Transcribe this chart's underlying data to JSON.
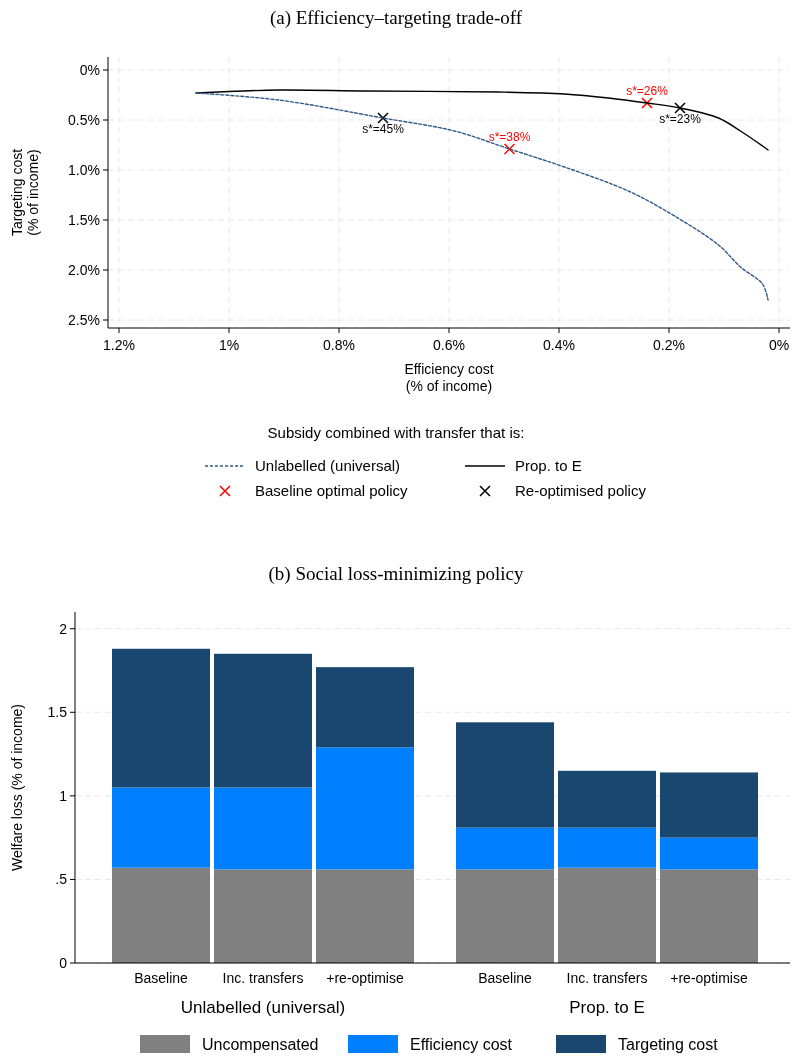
{
  "chart_data": [
    {
      "type": "line",
      "title": "(a)  Efficiency–targeting trade-off",
      "xlabel": "Efficiency cost\n(% of income)",
      "ylabel": "Targeting cost\n(% of income)",
      "legend_title": "Subsidy combined with transfer that is:",
      "legend": "bottom",
      "grid": true,
      "xlim": [
        1.22,
        -0.02
      ],
      "xticks": [
        {
          "value": 1.2,
          "label": "1.2%"
        },
        {
          "value": 1,
          "label": "1%"
        },
        {
          "value": 0.8,
          "label": "0.8%"
        },
        {
          "value": 0.6,
          "label": "0.6%"
        },
        {
          "value": 0.4,
          "label": "0.4%"
        },
        {
          "value": 0.2,
          "label": "0.2%"
        },
        {
          "value": 0,
          "label": "0%"
        }
      ],
      "ylim": [
        2.58,
        -0.13
      ],
      "yticks": [
        {
          "value": 0,
          "label": "0%"
        },
        {
          "value": 0.5,
          "label": "0.5%"
        },
        {
          "value": 1,
          "label": "1.0%"
        },
        {
          "value": 1.5,
          "label": "1.5%"
        },
        {
          "value": 2,
          "label": "2.0%"
        },
        {
          "value": 2.5,
          "label": "2.5%"
        }
      ],
      "annotations": [
        {
          "text": "s*=26%",
          "x": 0.24,
          "y": 0.33
        },
        {
          "text": "s*=38%",
          "x": 0.49,
          "y": 0.79
        },
        {
          "text": "s*=23%",
          "x": 0.18,
          "y": 0.38
        },
        {
          "text": "s*=45%",
          "x": 0.72,
          "y": 0.48
        }
      ],
      "series": [
        {
          "name": "Unlabelled (universal)",
          "type": "line",
          "line_style": "dashed",
          "color": "#2f5a87",
          "x": [
            1.06,
            0.91,
            0.72,
            0.59,
            0.49,
            0.39,
            0.27,
            0.19,
            0.11,
            0.07,
            0.03,
            0.02
          ],
          "values": [
            0.23,
            0.3,
            0.48,
            0.61,
            0.79,
            0.97,
            1.22,
            1.46,
            1.75,
            1.97,
            2.14,
            2.3
          ]
        },
        {
          "name": "Prop. to E",
          "type": "line",
          "line_style": "solid",
          "color": "#000000",
          "x": [
            1.06,
            0.91,
            0.75,
            0.51,
            0.39,
            0.31,
            0.24,
            0.18,
            0.11,
            0.07,
            0.03,
            0.02
          ],
          "values": [
            0.23,
            0.2,
            0.21,
            0.22,
            0.24,
            0.28,
            0.33,
            0.38,
            0.48,
            0.61,
            0.76,
            0.8
          ]
        },
        {
          "name": "Baseline optimal policy",
          "type": "scatter",
          "marker": "cross",
          "color": "#ff0000",
          "x": [
            0.24,
            0.49
          ],
          "values": [
            0.33,
            0.79
          ]
        },
        {
          "name": "Re-optimised policy",
          "type": "scatter",
          "marker": "cross",
          "color": "#000000",
          "x": [
            0.18,
            0.72
          ],
          "values": [
            0.38,
            0.48
          ]
        }
      ]
    },
    {
      "type": "bar",
      "stacked": true,
      "title": "(b)  Social loss-minimizing policy",
      "ylabel": "Welfare loss (% of income)",
      "legend": "bottom",
      "grid": "y",
      "categories": [
        "Baseline",
        "Inc. transfers",
        "+re-optimise",
        "Baseline",
        "Inc. transfers",
        "+re-optimise"
      ],
      "annotations": [
        "Unlabelled (universal)",
        "Prop. to E"
      ],
      "ylim": [
        0,
        2.1
      ],
      "yticks": [
        0,
        {
          "value": 0.5,
          "label": ".5"
        },
        1,
        1.5,
        2
      ],
      "series": [
        {
          "name": "Uncompensated",
          "color": "#808080",
          "values": [
            0.57,
            0.56,
            0.56,
            0.56,
            0.57,
            0.56
          ]
        },
        {
          "name": "Efficiency cost",
          "color": "#0080ff",
          "values": [
            0.48,
            0.49,
            0.73,
            0.25,
            0.24,
            0.19
          ]
        },
        {
          "name": "Targeting cost",
          "color": "#1a476f",
          "values": [
            0.83,
            0.8,
            0.48,
            0.63,
            0.34,
            0.39
          ]
        }
      ]
    }
  ]
}
